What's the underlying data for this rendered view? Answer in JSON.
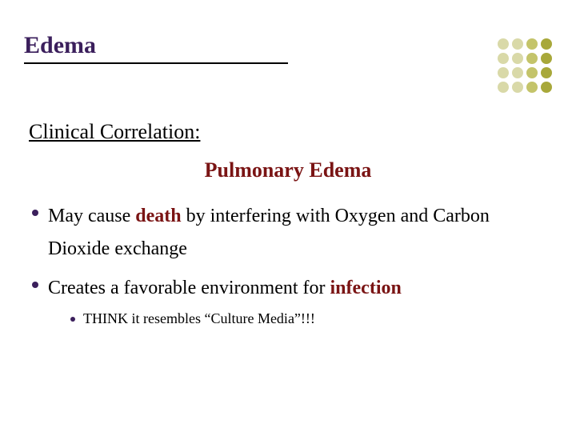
{
  "slide": {
    "title": "Edema",
    "title_color": "#3b1f5c",
    "title_fontsize": 30,
    "title_underline_width": 330,
    "section_heading": "Clinical Correlation:",
    "section_heading_fontsize": 26,
    "section_heading_color": "#000000",
    "sub_heading": "Pulmonary Edema",
    "sub_heading_fontsize": 26,
    "sub_heading_color": "#7a1414",
    "body_fontsize": 24,
    "body_color": "#000000",
    "bullet_marker_color": "#3b1f5c",
    "sub_bullet_fontsize": 18,
    "sub_bullet_marker_color": "#3b1f5c",
    "highlight_color": "#7a1414",
    "bullets": [
      {
        "pre": "May cause ",
        "strong": "death",
        "post": " by interfering with Oxygen and Carbon Dioxide exchange",
        "strong_highlight": true
      },
      {
        "pre": "Creates a favorable environment for ",
        "strong": "infection",
        "post": "",
        "strong_highlight": true,
        "sub": [
          {
            "text": "THINK it resembles “Culture Media”!!!"
          }
        ]
      }
    ],
    "decoration": {
      "row_count": 4,
      "col_count": 4,
      "dot_colors_by_col": [
        "#d9d9a8",
        "#d9d9a8",
        "#c4c46a",
        "#a8a83a"
      ]
    }
  }
}
